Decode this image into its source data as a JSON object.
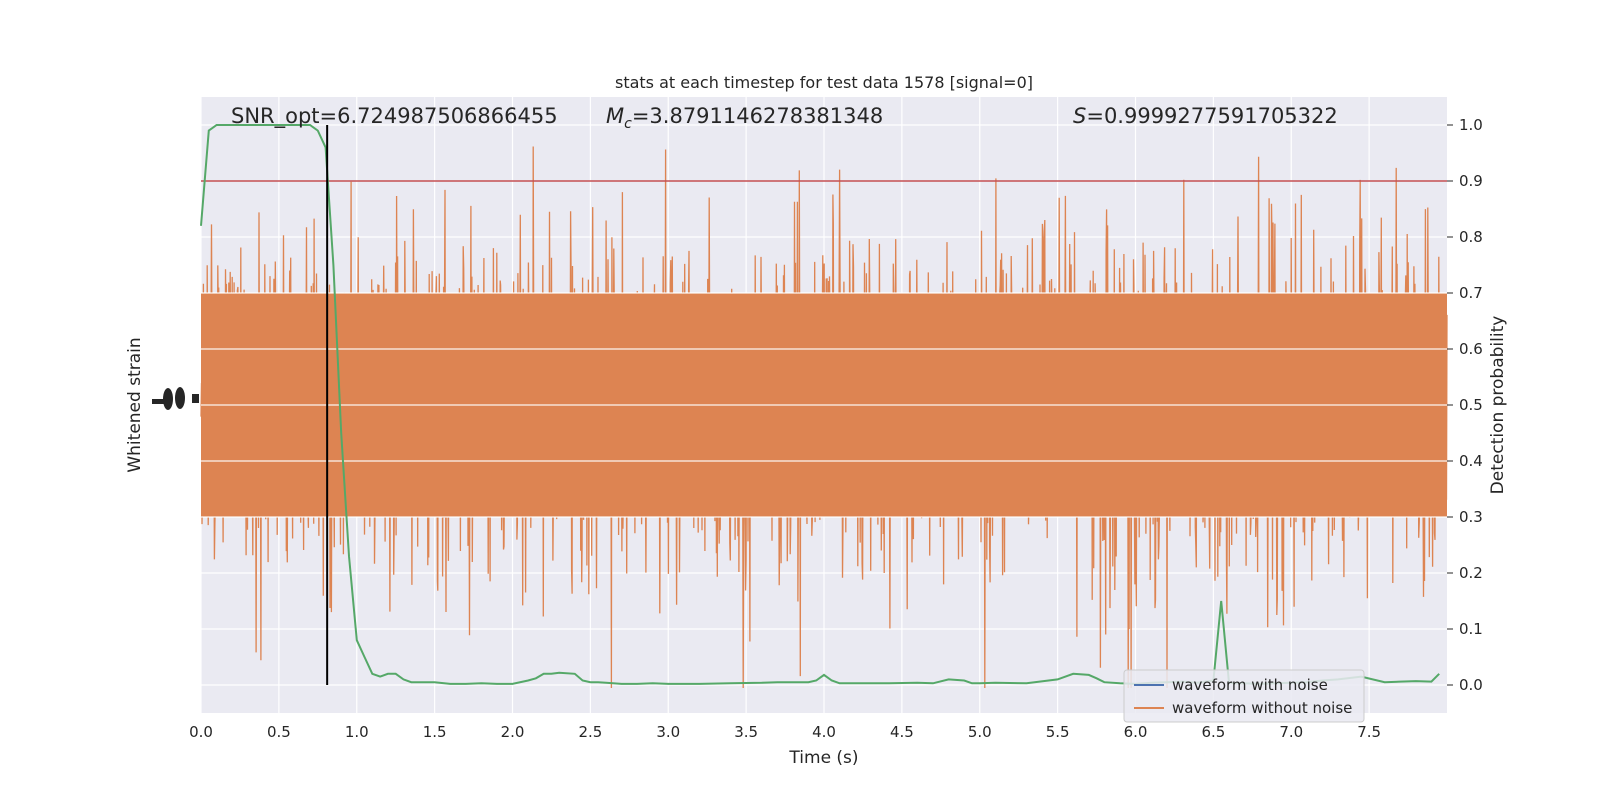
{
  "chart_data": {
    "type": "line",
    "title": "stats at each timestep for test data 1578 [signal=0]",
    "annotations": {
      "snr": "SNR_opt=6.724987506866455",
      "mc_symbol": "M",
      "mc_sub": "c",
      "mc_value": "=3.8791146278381348",
      "s_symbol": "S",
      "s_value": "=0.9999277591705322"
    },
    "xlabel": "Time (s)",
    "ylabel_left": "Whitened strain",
    "ylabel_right": "Detection probability",
    "xlim": [
      0.0,
      8.0
    ],
    "ylim_right": [
      -0.05,
      1.05
    ],
    "x_ticks": [
      "0.0",
      "0.5",
      "1.0",
      "1.5",
      "2.0",
      "2.5",
      "3.0",
      "3.5",
      "4.0",
      "4.5",
      "5.0",
      "5.5",
      "6.0",
      "6.5",
      "7.0",
      "7.5"
    ],
    "y_ticks_right": [
      "0.0",
      "0.1",
      "0.2",
      "0.3",
      "0.4",
      "0.5",
      "0.6",
      "0.7",
      "0.8",
      "0.9",
      "1.0"
    ],
    "grid": true,
    "legend_position": "lower-right",
    "threshold": 0.9,
    "marker_time": 0.81,
    "series": [
      {
        "name": "waveform with noise",
        "color": "#4c72b0"
      },
      {
        "name": "waveform without noise",
        "color": "#dd8452"
      }
    ],
    "detection_probability": {
      "color": "#55a868",
      "x": [
        0.0,
        0.05,
        0.1,
        0.2,
        0.3,
        0.4,
        0.5,
        0.6,
        0.7,
        0.75,
        0.8,
        0.85,
        0.9,
        0.95,
        1.0,
        1.05,
        1.1,
        1.15,
        1.2,
        1.25,
        1.3,
        1.35,
        1.4,
        1.5,
        1.6,
        1.7,
        1.8,
        1.9,
        2.0,
        2.1,
        2.15,
        2.2,
        2.25,
        2.3,
        2.4,
        2.45,
        2.5,
        2.55,
        2.6,
        2.7,
        2.8,
        2.9,
        3.0,
        3.2,
        3.4,
        3.6,
        3.7,
        3.8,
        3.9,
        3.95,
        4.0,
        4.05,
        4.1,
        4.2,
        4.4,
        4.6,
        4.7,
        4.8,
        4.9,
        4.95,
        5.0,
        5.1,
        5.3,
        5.5,
        5.6,
        5.7,
        5.75,
        5.8,
        5.9,
        6.0,
        6.1,
        6.2,
        6.3,
        6.4,
        6.5,
        6.55,
        6.6,
        6.65,
        6.7,
        6.8,
        6.9,
        7.0,
        7.1,
        7.2,
        7.3,
        7.45,
        7.6,
        7.7,
        7.8,
        7.9,
        7.95
      ],
      "y": [
        0.82,
        0.99,
        1.0,
        1.0,
        1.0,
        1.0,
        1.0,
        1.0,
        1.0,
        0.99,
        0.96,
        0.75,
        0.45,
        0.23,
        0.08,
        0.05,
        0.02,
        0.015,
        0.02,
        0.02,
        0.01,
        0.005,
        0.005,
        0.005,
        0.002,
        0.002,
        0.003,
        0.002,
        0.002,
        0.008,
        0.012,
        0.02,
        0.02,
        0.022,
        0.02,
        0.008,
        0.005,
        0.005,
        0.004,
        0.002,
        0.002,
        0.003,
        0.002,
        0.002,
        0.003,
        0.004,
        0.005,
        0.005,
        0.005,
        0.008,
        0.018,
        0.008,
        0.003,
        0.003,
        0.003,
        0.004,
        0.003,
        0.01,
        0.008,
        0.003,
        0.003,
        0.004,
        0.003,
        0.01,
        0.02,
        0.018,
        0.012,
        0.005,
        0.003,
        0.002,
        0.004,
        0.005,
        0.006,
        0.004,
        0.008,
        0.15,
        0.004,
        0.003,
        0.003,
        0.002,
        0.003,
        0.004,
        0.005,
        0.008,
        0.01,
        0.015,
        0.005,
        0.006,
        0.007,
        0.006,
        0.02
      ]
    }
  }
}
